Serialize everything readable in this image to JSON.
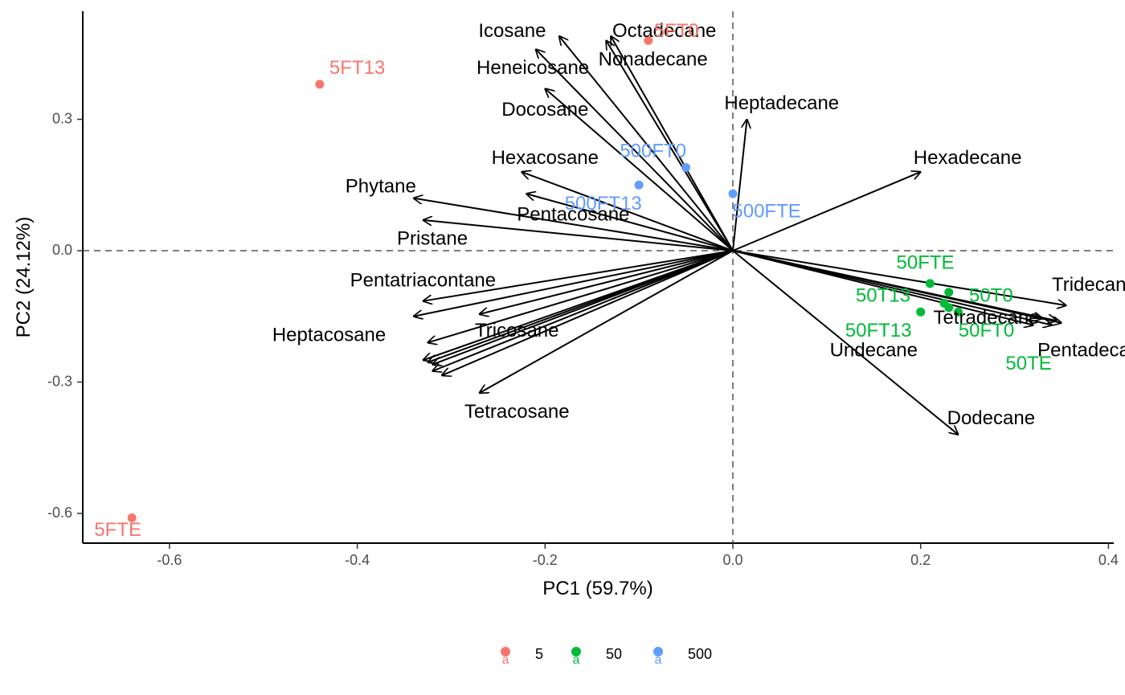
{
  "chart_data": {
    "type": "scatter",
    "subtype": "pca-biplot",
    "xlabel": "PC1 (59.7%)",
    "ylabel": "PC2 (24.12%)",
    "xlim": [
      -0.69,
      0.4
    ],
    "ylim": [
      -0.67,
      0.55
    ],
    "x_ticks": [
      -0.6,
      -0.4,
      -0.2,
      0.0,
      0.2,
      0.4
    ],
    "x_tick_labels": [
      "-0.6",
      "-0.4",
      "-0.2",
      "0.0",
      "0.2",
      "0.4"
    ],
    "y_ticks": [
      -0.6,
      -0.3,
      0.0,
      0.3
    ],
    "y_tick_labels": [
      "-0.6",
      "-0.3",
      "0.0",
      "0.3"
    ],
    "grid": false,
    "reference_lines": {
      "x": 0,
      "y": 0,
      "style": "dashed"
    },
    "legend": {
      "position": "bottom",
      "items": [
        {
          "label": "5",
          "color": "#F8766D"
        },
        {
          "label": "50",
          "color": "#00BA38"
        },
        {
          "label": "500",
          "color": "#619CFF"
        }
      ]
    },
    "observations": [
      {
        "label": "5FT0",
        "group": "5",
        "x": -0.09,
        "y": 0.48,
        "lx": -0.06,
        "ly": 0.5
      },
      {
        "label": "5FT13",
        "group": "5",
        "x": -0.44,
        "y": 0.38,
        "lx": -0.4,
        "ly": 0.415
      },
      {
        "label": "5FTE",
        "group": "5",
        "x": -0.64,
        "y": -0.61,
        "lx": -0.655,
        "ly": -0.64
      },
      {
        "label": "500FT0",
        "group": "500",
        "x": -0.05,
        "y": 0.19,
        "lx": -0.085,
        "ly": 0.225
      },
      {
        "label": "500FT13",
        "group": "500",
        "x": -0.1,
        "y": 0.15,
        "lx": -0.138,
        "ly": 0.105
      },
      {
        "label": "500FTE",
        "group": "500",
        "x": 0.0,
        "y": 0.13,
        "lx": 0.036,
        "ly": 0.088
      },
      {
        "label": "50FTE",
        "group": "50",
        "x": 0.21,
        "y": -0.075,
        "lx": 0.205,
        "ly": -0.03
      },
      {
        "label": "50T13",
        "group": "50",
        "x": 0.23,
        "y": -0.095,
        "lx": 0.16,
        "ly": -0.105
      },
      {
        "label": "50T0",
        "group": "50",
        "x": 0.2,
        "y": -0.14,
        "lx": 0.275,
        "ly": -0.105
      },
      {
        "label": "50FT13",
        "group": "50",
        "x": 0.225,
        "y": -0.12,
        "lx": 0.155,
        "ly": -0.185
      },
      {
        "label": "50FT0",
        "group": "50",
        "x": 0.23,
        "y": -0.13,
        "lx": 0.27,
        "ly": -0.185
      },
      {
        "label": "50TE",
        "group": "50",
        "x": 0.24,
        "y": -0.14,
        "lx": 0.315,
        "ly": -0.26
      }
    ],
    "loadings": [
      {
        "label": "Icosane",
        "x": -0.185,
        "y": 0.49,
        "lx": -0.235,
        "ly": 0.5
      },
      {
        "label": "Octadecane",
        "x": -0.13,
        "y": 0.49,
        "lx": -0.073,
        "ly": 0.5
      },
      {
        "label": "Nonadecane",
        "x": -0.135,
        "y": 0.48,
        "lx": -0.085,
        "ly": 0.435
      },
      {
        "label": "Heneicosane",
        "x": -0.21,
        "y": 0.46,
        "lx": -0.213,
        "ly": 0.415
      },
      {
        "label": "Docosane",
        "x": -0.2,
        "y": 0.37,
        "lx": -0.2,
        "ly": 0.32
      },
      {
        "label": "Heptadecane",
        "x": 0.015,
        "y": 0.3,
        "lx": 0.052,
        "ly": 0.335
      },
      {
        "label": "Hexacosane",
        "x": -0.225,
        "y": 0.18,
        "lx": -0.2,
        "ly": 0.21
      },
      {
        "label": "Hexadecane",
        "x": 0.2,
        "y": 0.18,
        "lx": 0.25,
        "ly": 0.21
      },
      {
        "label": "Phytane",
        "x": -0.34,
        "y": 0.12,
        "lx": -0.375,
        "ly": 0.145
      },
      {
        "label": "Pentacosane",
        "x": -0.22,
        "y": 0.13,
        "lx": -0.17,
        "ly": 0.08
      },
      {
        "label": "Pristane",
        "x": -0.33,
        "y": 0.07,
        "lx": -0.32,
        "ly": 0.025
      },
      {
        "label": "Pentatriacontane",
        "x": -0.33,
        "y": -0.115,
        "lx": -0.33,
        "ly": -0.07
      },
      {
        "label": "Tricosane",
        "x": -0.27,
        "y": -0.145,
        "lx": -0.23,
        "ly": -0.185
      },
      {
        "label": "Heptacosane",
        "x": -0.34,
        "y": -0.15,
        "lx": -0.43,
        "ly": -0.195
      },
      {
        "label": "Tetracosane",
        "x": -0.27,
        "y": -0.325,
        "lx": -0.23,
        "ly": -0.37
      },
      {
        "label": "Tridecane",
        "x": 0.355,
        "y": -0.125,
        "lx": 0.385,
        "ly": -0.08
      },
      {
        "label": "Tetradecane",
        "x": 0.35,
        "y": -0.165,
        "lx": 0.27,
        "ly": -0.155
      },
      {
        "label": "Pentadecane",
        "x": 0.34,
        "y": -0.17,
        "lx": 0.385,
        "ly": -0.23
      },
      {
        "label": "Undecane",
        "x": 0.345,
        "y": -0.16,
        "lx": 0.15,
        "ly": -0.23
      },
      {
        "label": "Dodecane",
        "x": 0.24,
        "y": -0.42,
        "lx": 0.275,
        "ly": -0.385
      },
      {
        "x": -0.325,
        "y": -0.21
      },
      {
        "x": -0.33,
        "y": -0.25
      },
      {
        "x": -0.325,
        "y": -0.255
      },
      {
        "x": -0.32,
        "y": -0.26
      },
      {
        "x": -0.32,
        "y": -0.275
      },
      {
        "x": -0.31,
        "y": -0.285
      },
      {
        "x": 0.32,
        "y": -0.17
      },
      {
        "x": 0.33,
        "y": -0.155
      }
    ]
  }
}
